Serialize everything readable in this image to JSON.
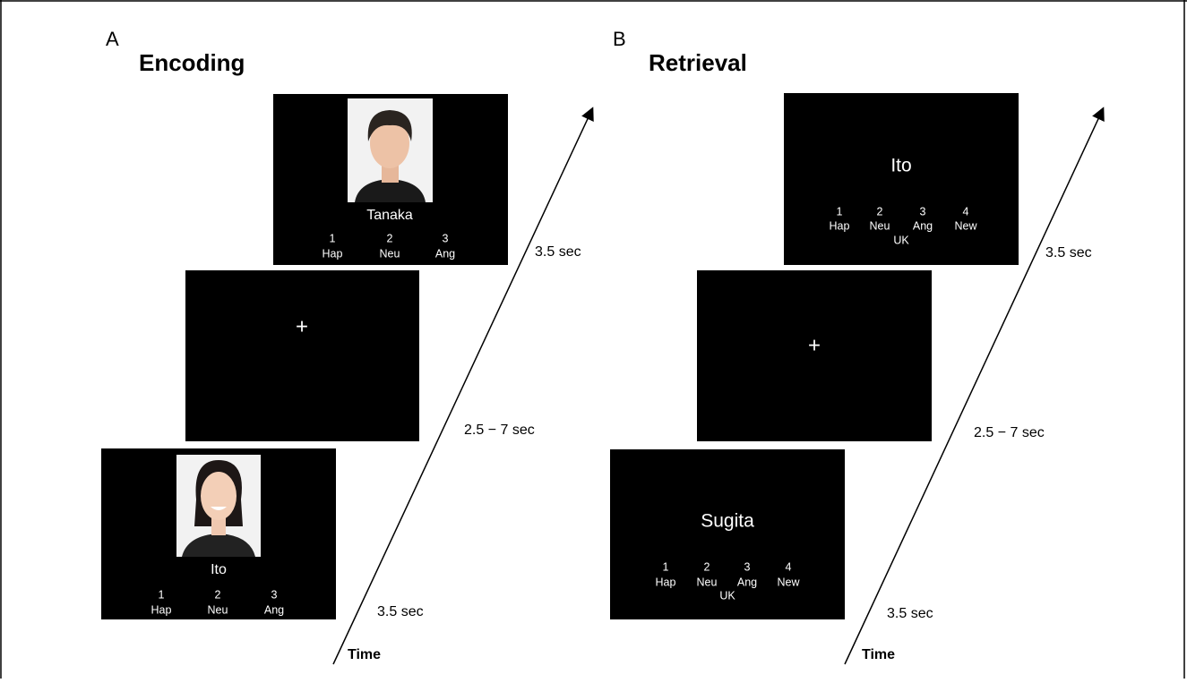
{
  "panels": [
    {
      "label": "A",
      "title": "Encoding",
      "screens": [
        {
          "name": "Tanaka",
          "options": [
            {
              "number": "1",
              "label": "Hap"
            },
            {
              "number": "2",
              "label": "Neu"
            },
            {
              "number": "3",
              "label": "Ang"
            }
          ]
        },
        {
          "fixation": "+"
        },
        {
          "name": "Ito",
          "options": [
            {
              "number": "1",
              "label": "Hap"
            },
            {
              "number": "2",
              "label": "Neu"
            },
            {
              "number": "3",
              "label": "Ang"
            }
          ]
        }
      ],
      "durations": [
        "3.5 sec",
        "2.5 − 7 sec",
        "3.5 sec"
      ],
      "axis_label": "Time"
    },
    {
      "label": "B",
      "title": "Retrieval",
      "screens": [
        {
          "name": "Ito",
          "options": [
            {
              "number": "1",
              "label": "Hap"
            },
            {
              "number": "2",
              "label": "Neu"
            },
            {
              "number": "3",
              "label": "Ang"
            },
            {
              "number": "4",
              "label": "New"
            }
          ],
          "extra": "UK"
        },
        {
          "fixation": "+"
        },
        {
          "name": "Sugita",
          "options": [
            {
              "number": "1",
              "label": "Hap"
            },
            {
              "number": "2",
              "label": "Neu"
            },
            {
              "number": "3",
              "label": "Ang"
            },
            {
              "number": "4",
              "label": "New"
            }
          ],
          "extra": "UK"
        }
      ],
      "durations": [
        "3.5 sec",
        "2.5 − 7 sec",
        "3.5 sec"
      ],
      "axis_label": "Time"
    }
  ]
}
